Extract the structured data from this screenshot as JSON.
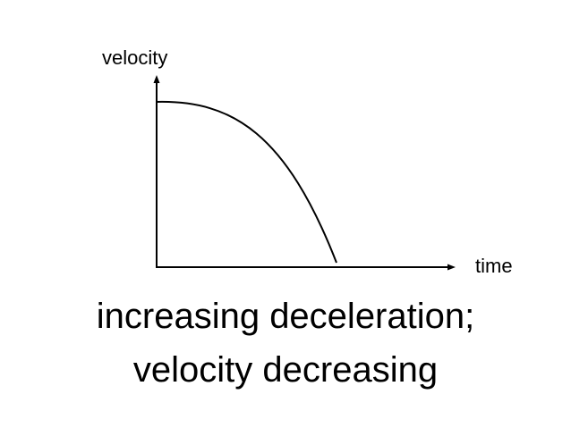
{
  "diagram": {
    "y_axis_label": "velocity",
    "x_axis_label": "time",
    "curve": "velocity falls from a maximum at time 0 to zero, decreasing ever faster (concave-down curve)"
  },
  "caption": {
    "line1": "increasing deceleration;",
    "line2": "velocity decreasing"
  },
  "colors": {
    "line": "#000000",
    "background": "#ffffff"
  }
}
